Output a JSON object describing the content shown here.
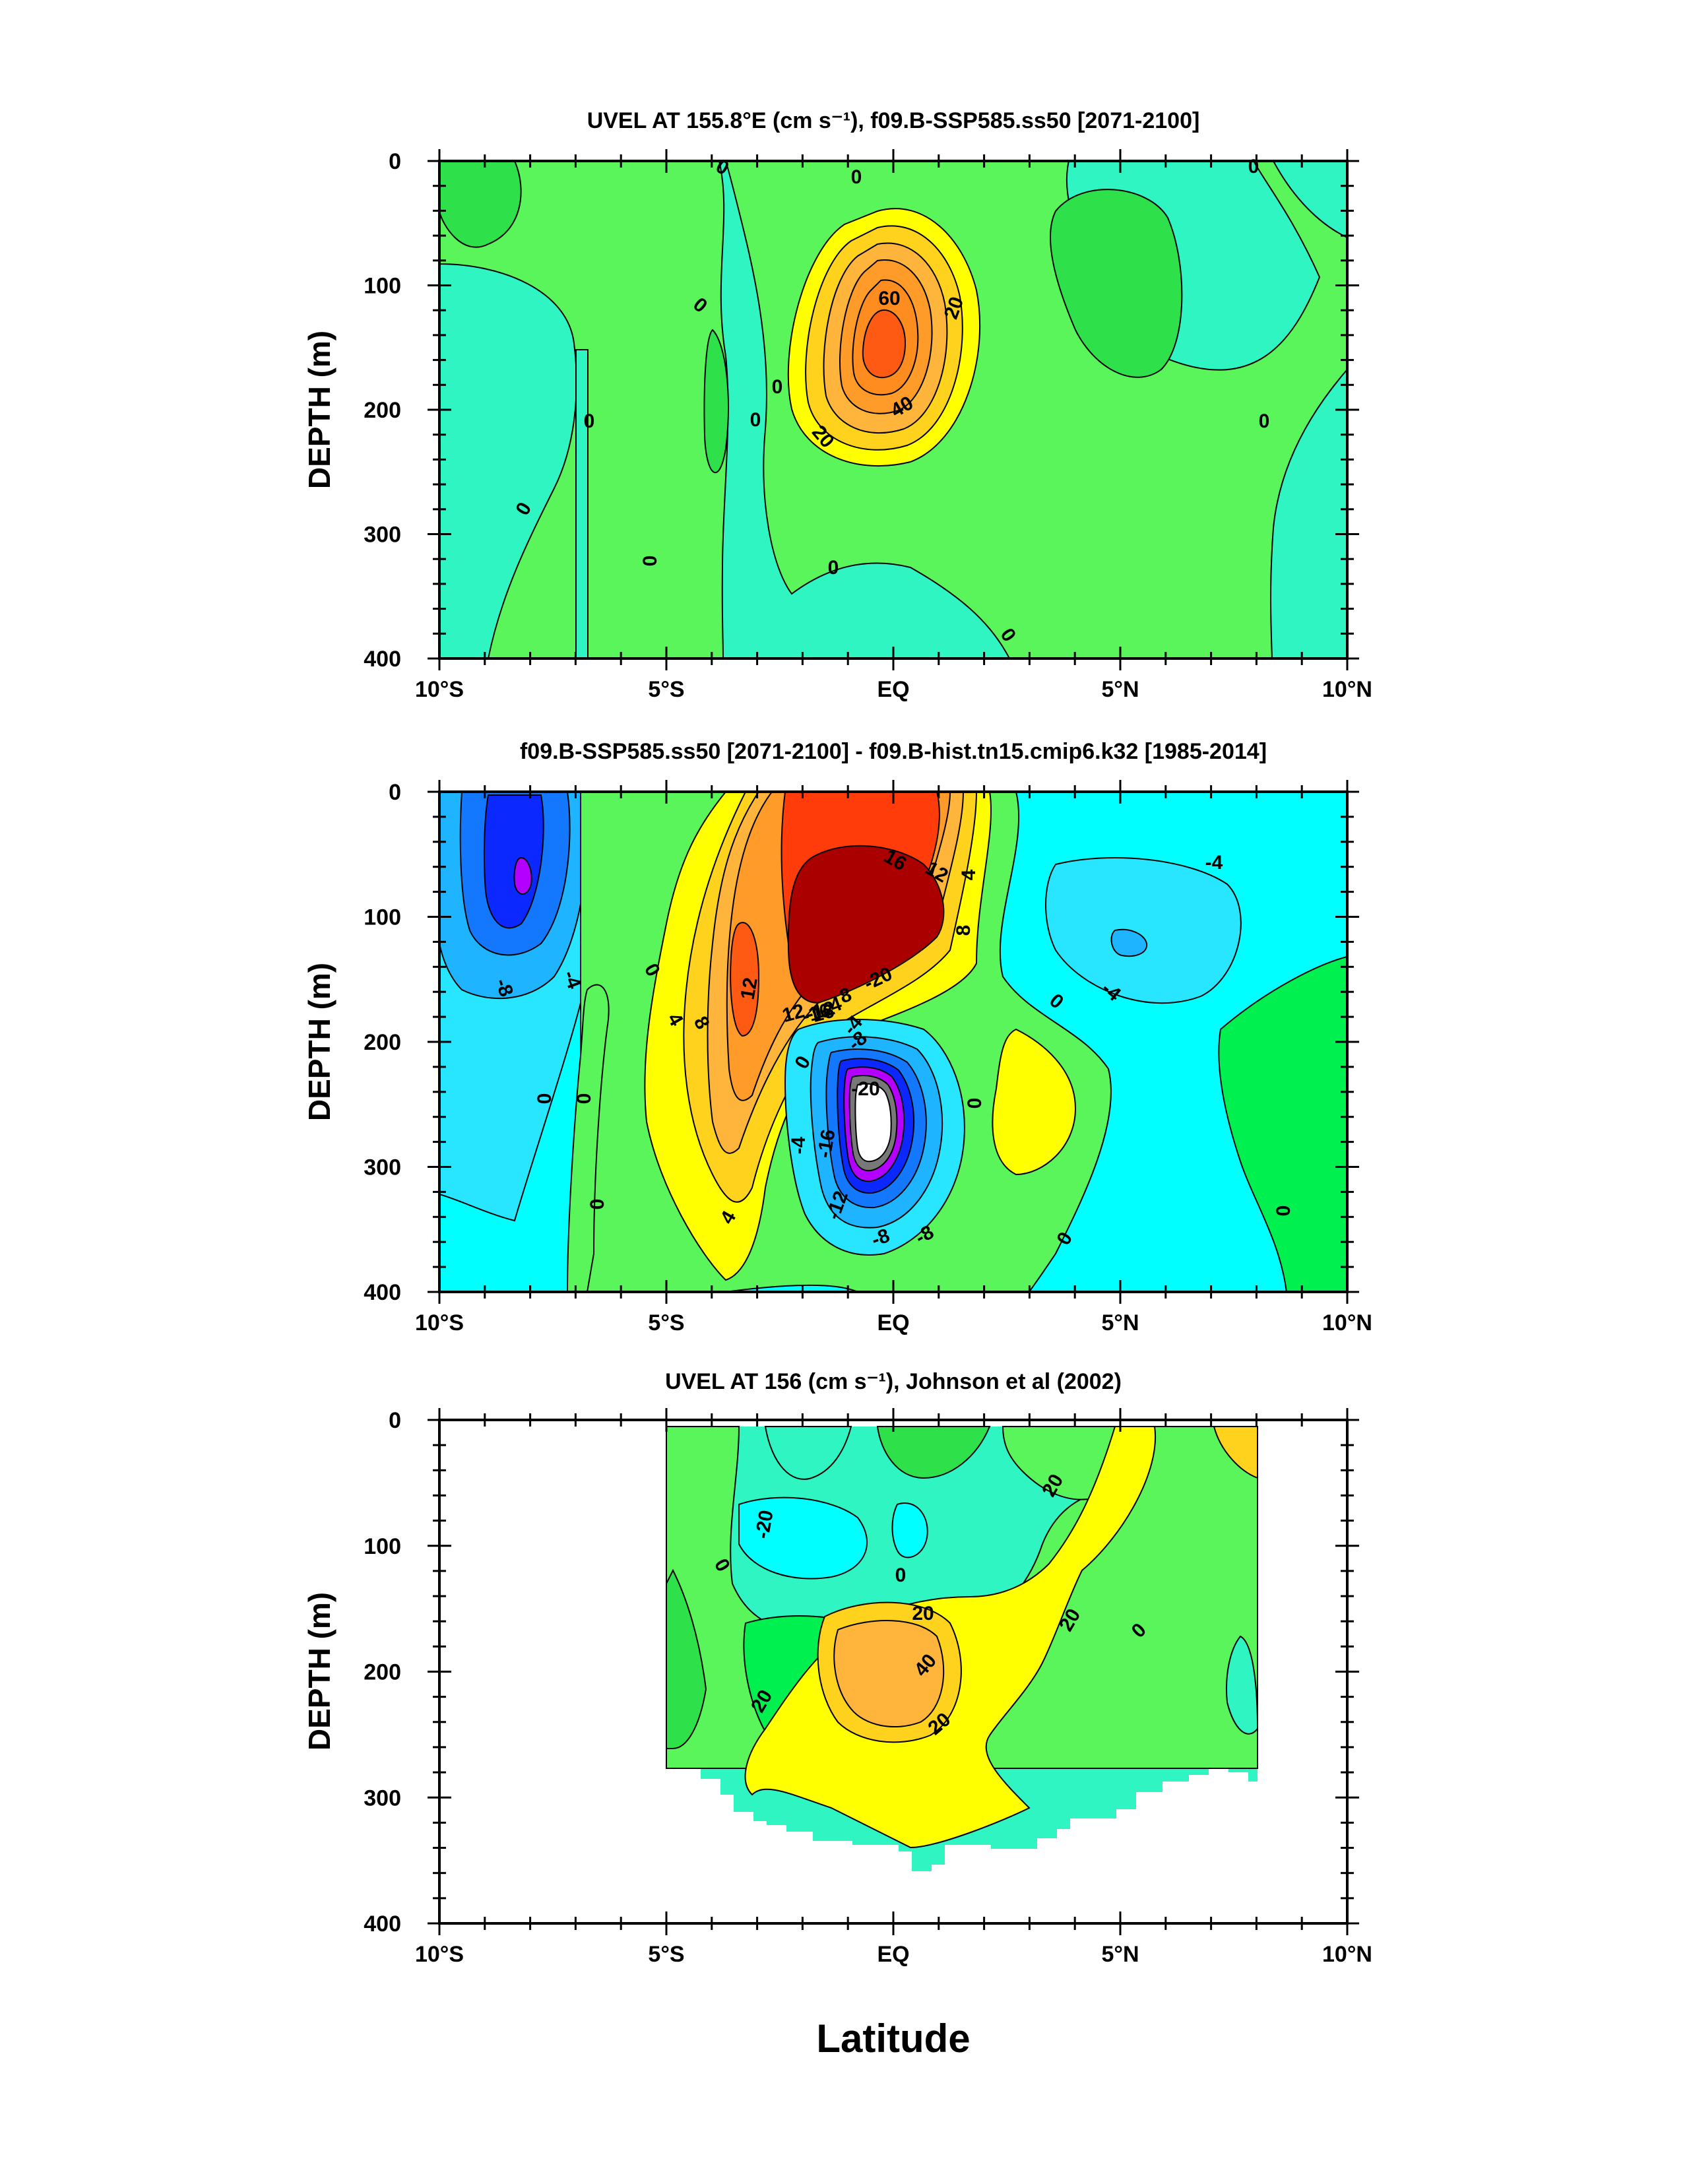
{
  "figure": {
    "xlabel": "Latitude",
    "x_ticks": [
      "10°S",
      "5°S",
      "EQ",
      "5°N",
      "10°N"
    ],
    "y_ticks": [
      "0",
      "100",
      "200",
      "300",
      "400"
    ]
  },
  "chart_data": [
    {
      "type": "heatmap",
      "title": "UVEL AT 155.8°E (cm s⁻¹), f09.B-SSP585.ss50 [2071-2100]",
      "ylabel": "DEPTH (m)",
      "xlim": [
        -10,
        10
      ],
      "ylim": [
        400,
        0
      ],
      "contour_labels": [
        "0",
        "0",
        "0",
        "0",
        "0",
        "0",
        "0",
        "0",
        "0",
        "0",
        "0",
        "0",
        "20",
        "20",
        "40",
        "60"
      ],
      "features": [
        {
          "name": "equatorial undercurrent core",
          "lat": -0.2,
          "depth": 140,
          "max_value": 70
        },
        {
          "name": "westward surface flow",
          "lat": -4.5,
          "depth": 0,
          "value": -5
        }
      ]
    },
    {
      "type": "heatmap",
      "title": "f09.B-SSP585.ss50 [2071-2100] - f09.B-hist.tn15.cmip6.k32 [1985-2014]",
      "ylabel": "DEPTH (m)",
      "xlim": [
        -10,
        10
      ],
      "ylim": [
        400,
        0
      ],
      "contour_labels": [
        "-8",
        "-4",
        "0",
        "0",
        "0",
        "0",
        "4",
        "8",
        "12",
        "16",
        "12",
        "8",
        "4",
        "-20",
        "-16",
        "-12",
        "-8",
        "-4",
        "0",
        "4",
        "16",
        "12",
        "4",
        "8",
        "0",
        "0",
        "-4",
        "-4",
        "-8",
        "-12",
        "-4",
        "-8",
        "-16",
        "-20",
        "0",
        "0"
      ],
      "features": [
        {
          "name": "positive anomaly above core",
          "lat": -0.8,
          "depth": 120,
          "value": 22
        },
        {
          "name": "negative anomaly below core",
          "lat": 0.0,
          "depth": 260,
          "value": -24
        },
        {
          "name": "negative anomaly",
          "lat": -8.2,
          "depth": 70,
          "value": -14
        }
      ]
    },
    {
      "type": "heatmap",
      "title": "UVEL AT 156 (cm s⁻¹), Johnson et al (2002)",
      "ylabel": "DEPTH (m)",
      "xlim": [
        -10,
        10
      ],
      "ylim": [
        400,
        0
      ],
      "data_extent_lat": [
        -5,
        8
      ],
      "contour_labels": [
        "-20",
        "0",
        "0",
        "20",
        "40",
        "20",
        "20",
        "20",
        "20",
        "0"
      ],
      "features": [
        {
          "name": "equatorial undercurrent core",
          "lat": -0.5,
          "depth": 200,
          "max_value": 45
        },
        {
          "name": "westward surface flow",
          "lat": -2.5,
          "depth": 60,
          "value": -25
        }
      ]
    }
  ]
}
